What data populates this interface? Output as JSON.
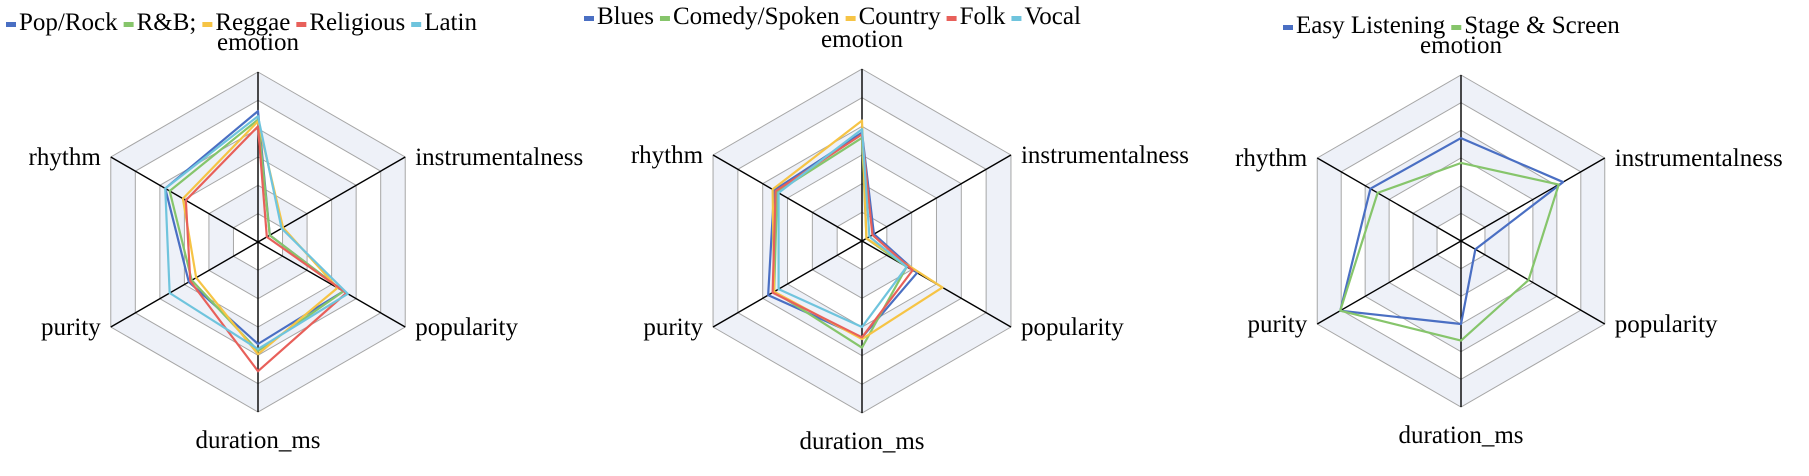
{
  "colors": {
    "blue": "#4a6fc3",
    "green": "#86c56b",
    "yellow": "#f6c445",
    "red": "#e8605a",
    "cyan": "#6fc4dd",
    "grid": "#a6a6a6",
    "axis": "#000000",
    "band": "#eef1f8"
  },
  "chart_data": [
    {
      "type": "radar",
      "axes": [
        "emotion",
        "instrumentalness",
        "popularity",
        "duration_ms",
        "purity",
        "rhythm"
      ],
      "rlim": [
        0,
        1
      ],
      "rings": 6,
      "legend": "top",
      "series": [
        {
          "name": "Pop/Rock",
          "color": "blue",
          "values": [
            0.77,
            0.08,
            0.58,
            0.6,
            0.47,
            0.63
          ]
        },
        {
          "name": "R&B;",
          "color": "green",
          "values": [
            0.72,
            0.08,
            0.58,
            0.64,
            0.45,
            0.6
          ]
        },
        {
          "name": "Reggae",
          "color": "yellow",
          "values": [
            0.71,
            0.17,
            0.54,
            0.66,
            0.42,
            0.51
          ]
        },
        {
          "name": "Religious",
          "color": "red",
          "values": [
            0.68,
            0.06,
            0.6,
            0.76,
            0.46,
            0.49
          ]
        },
        {
          "name": "Latin",
          "color": "cyan",
          "values": [
            0.74,
            0.16,
            0.61,
            0.63,
            0.6,
            0.63
          ]
        }
      ]
    },
    {
      "type": "radar",
      "axes": [
        "emotion",
        "instrumentalness",
        "popularity",
        "duration_ms",
        "purity",
        "rhythm"
      ],
      "rlim": [
        0,
        1
      ],
      "rings": 6,
      "legend": "top",
      "series": [
        {
          "name": "Blues",
          "color": "blue",
          "values": [
            0.63,
            0.08,
            0.37,
            0.56,
            0.63,
            0.59
          ]
        },
        {
          "name": "Comedy/Spoken",
          "color": "green",
          "values": [
            0.6,
            0.03,
            0.3,
            0.62,
            0.59,
            0.57
          ]
        },
        {
          "name": "Country",
          "color": "yellow",
          "values": [
            0.7,
            0.03,
            0.54,
            0.57,
            0.59,
            0.6
          ]
        },
        {
          "name": "Folk",
          "color": "red",
          "values": [
            0.62,
            0.07,
            0.34,
            0.56,
            0.6,
            0.58
          ]
        },
        {
          "name": "Vocal",
          "color": "cyan",
          "values": [
            0.65,
            0.05,
            0.3,
            0.5,
            0.56,
            0.56
          ]
        }
      ]
    },
    {
      "type": "radar",
      "axes": [
        "emotion",
        "instrumentalness",
        "popularity",
        "duration_ms",
        "purity",
        "rhythm"
      ],
      "rlim": [
        0,
        1
      ],
      "rings": 6,
      "legend": "top",
      "series": [
        {
          "name": "Easy Listening",
          "color": "blue",
          "values": [
            0.62,
            0.71,
            0.1,
            0.5,
            0.84,
            0.63
          ]
        },
        {
          "name": "Stage & Screen",
          "color": "green",
          "values": [
            0.47,
            0.68,
            0.47,
            0.6,
            0.84,
            0.58
          ]
        }
      ]
    }
  ]
}
